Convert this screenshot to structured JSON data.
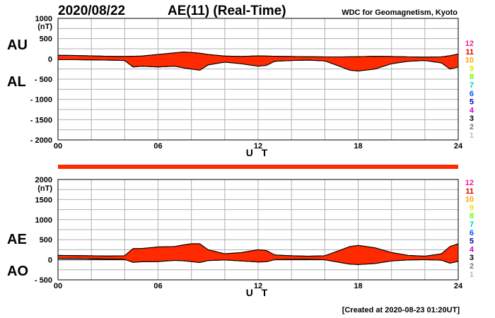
{
  "header": {
    "date": "2020/08/22",
    "title": "AE(11) (Real-Time)",
    "org": "WDC for Geomagnetism, Kyoto"
  },
  "footer": {
    "created": "[Created at 2020-08-23 01:20UT]"
  },
  "panels": [
    {
      "id": "au-al",
      "labels": [
        "AU",
        "AL"
      ],
      "unit": "(nT)",
      "y_ticks": [
        "1000",
        "500",
        "0",
        "- 500",
        "- 1000",
        "- 1500",
        "- 2000"
      ],
      "x_ticks": [
        "00",
        "06",
        "12",
        "18",
        "24"
      ],
      "xlabel": "U T"
    },
    {
      "id": "ae-ao",
      "labels": [
        "AE",
        "AO"
      ],
      "unit": "(nT)",
      "y_ticks": [
        "2000",
        "1500",
        "1000",
        "500",
        "0",
        "- 500"
      ],
      "x_ticks": [
        "00",
        "06",
        "12",
        "18",
        "24"
      ],
      "xlabel": "U T"
    }
  ],
  "legend": {
    "entries": [
      "12",
      "11",
      "10",
      "9",
      "8",
      "7",
      "6",
      "5",
      "4",
      "3",
      "2",
      "1"
    ],
    "colors": [
      "#ff1493",
      "#e00000",
      "#ffa500",
      "#e6e600",
      "#66ff00",
      "#00cccc",
      "#0055ff",
      "#0000aa",
      "#cc00cc",
      "#000000",
      "#777777",
      "#bbbbbb"
    ]
  },
  "colors": {
    "envelope_fill": "#ff2a00",
    "station_bar": "#ff2a00",
    "grid": "#b0b0b0"
  },
  "chart_data": [
    {
      "type": "area",
      "series": [
        {
          "name": "AU",
          "x": [
            0,
            1,
            2,
            3,
            4,
            5,
            6,
            7,
            7.5,
            8,
            8.5,
            9,
            10,
            11,
            12,
            13,
            14,
            15,
            16,
            17,
            18,
            19,
            20,
            21,
            22,
            23,
            23.5,
            24
          ],
          "values": [
            90,
            85,
            75,
            65,
            60,
            70,
            110,
            150,
            170,
            160,
            140,
            110,
            70,
            60,
            75,
            65,
            60,
            55,
            50,
            50,
            55,
            65,
            60,
            50,
            45,
            50,
            80,
            120
          ]
        },
        {
          "name": "AL",
          "x": [
            0,
            1,
            2,
            3,
            4,
            4.5,
            5,
            6,
            7,
            7.5,
            8,
            8.5,
            9,
            10,
            11,
            12,
            12.5,
            13,
            14,
            15,
            16,
            17,
            17.5,
            18,
            19,
            20,
            21,
            22,
            23,
            23.5,
            24
          ],
          "values": [
            -20,
            -20,
            -25,
            -30,
            -40,
            -200,
            -180,
            -200,
            -180,
            -220,
            -250,
            -280,
            -150,
            -80,
            -120,
            -180,
            -160,
            -60,
            -40,
            -30,
            -50,
            -200,
            -280,
            -300,
            -250,
            -120,
            -60,
            -40,
            -100,
            -250,
            -200
          ]
        }
      ],
      "xlabel": "U T",
      "ylabel": "(nT)",
      "xlim": [
        0,
        24
      ],
      "ylim": [
        -2000,
        1000
      ],
      "x_ticks": [
        0,
        6,
        12,
        18,
        24
      ],
      "y_ticks": [
        1000,
        500,
        0,
        -500,
        -1000,
        -1500,
        -2000
      ],
      "grid": true
    },
    {
      "type": "area",
      "series": [
        {
          "name": "AE",
          "x": [
            0,
            1,
            2,
            3,
            4,
            4.5,
            5,
            6,
            7,
            7.5,
            8,
            8.5,
            9,
            10,
            11,
            12,
            12.5,
            13,
            14,
            15,
            16,
            17,
            17.5,
            18,
            19,
            20,
            21,
            22,
            23,
            23.5,
            24
          ],
          "values": [
            110,
            105,
            100,
            95,
            100,
            280,
            280,
            320,
            330,
            370,
            400,
            400,
            250,
            150,
            180,
            250,
            230,
            120,
            100,
            90,
            100,
            250,
            330,
            360,
            300,
            180,
            110,
            90,
            150,
            330,
            400
          ]
        },
        {
          "name": "AO",
          "x": [
            0,
            1,
            2,
            3,
            4,
            4.5,
            5,
            6,
            7,
            7.5,
            8,
            8.5,
            9,
            10,
            11,
            12,
            12.5,
            13,
            14,
            15,
            16,
            17,
            17.5,
            18,
            19,
            20,
            21,
            22,
            23,
            23.5,
            24
          ],
          "values": [
            35,
            33,
            25,
            18,
            10,
            -65,
            -50,
            -45,
            -15,
            -25,
            -45,
            -70,
            -20,
            -5,
            -30,
            -55,
            -50,
            3,
            10,
            13,
            0,
            -75,
            -110,
            -120,
            -95,
            -30,
            -5,
            3,
            -10,
            -85,
            -40
          ]
        }
      ],
      "xlabel": "U T",
      "ylabel": "(nT)",
      "xlim": [
        0,
        24
      ],
      "ylim": [
        -500,
        2000
      ],
      "x_ticks": [
        0,
        6,
        12,
        18,
        24
      ],
      "y_ticks": [
        2000,
        1500,
        1000,
        500,
        0,
        -500
      ],
      "grid": true
    }
  ]
}
